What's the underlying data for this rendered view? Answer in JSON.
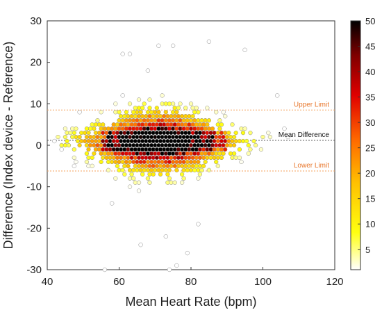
{
  "chart_data": {
    "type": "scatter",
    "subtype": "density-colored Bland-Altman plot",
    "title": "",
    "xlabel": "Mean Heart Rate (bpm)",
    "ylabel": "Difference (Index device - Reference)",
    "xlim": [
      40,
      120
    ],
    "ylim": [
      -30,
      30
    ],
    "xticks": [
      40,
      60,
      80,
      100,
      120
    ],
    "yticks": [
      -30,
      -20,
      -10,
      0,
      10,
      20,
      30
    ],
    "grid": false,
    "marker": "hexagon-packed circles, density-colored",
    "reference_lines": [
      {
        "name": "Upper Limit",
        "y": 8.5,
        "color": "#f4a05a",
        "style": "dotted",
        "label_color": "#e8772c"
      },
      {
        "name": "Mean Difference",
        "y": 1.2,
        "color": "#555555",
        "style": "dotted",
        "label_color": "#111111"
      },
      {
        "name": "Lower Limit",
        "y": -6.2,
        "color": "#f4a05a",
        "style": "dotted",
        "label_color": "#e8772c"
      }
    ],
    "colorbar": {
      "min": 1,
      "max": 50,
      "ticks": [
        5,
        10,
        15,
        20,
        25,
        30,
        35,
        40,
        45,
        50
      ],
      "colormap": "hot-reversed",
      "stops": [
        "#ffffff",
        "#ffff10",
        "#ffc000",
        "#ff6a00",
        "#e00000",
        "#800000",
        "#000000"
      ]
    },
    "density_core": {
      "description": "mean heart rate 48-96 bpm concentrated near zero difference; densest (black) 55-90 bpm",
      "x_range": [
        45,
        100
      ],
      "peak_x_range": [
        55,
        90
      ],
      "peak_y_range": [
        -2,
        3
      ]
    },
    "sample_outliers": [
      {
        "x": 85,
        "y": 25
      },
      {
        "x": 95,
        "y": 23
      },
      {
        "x": 71,
        "y": 24
      },
      {
        "x": 75,
        "y": 24
      },
      {
        "x": 63,
        "y": 22
      },
      {
        "x": 61,
        "y": 22
      },
      {
        "x": 68,
        "y": 18
      },
      {
        "x": 104,
        "y": 12
      },
      {
        "x": 56,
        "y": -30
      },
      {
        "x": 74,
        "y": -30
      },
      {
        "x": 76,
        "y": -29
      },
      {
        "x": 79,
        "y": -26
      },
      {
        "x": 73,
        "y": -22
      },
      {
        "x": 66,
        "y": -24
      },
      {
        "x": 58,
        "y": -14
      },
      {
        "x": 82,
        "y": -19
      },
      {
        "x": 44,
        "y": -1
      },
      {
        "x": 42,
        "y": 1
      },
      {
        "x": 107,
        "y": 2
      },
      {
        "x": 106,
        "y": 4
      }
    ]
  }
}
